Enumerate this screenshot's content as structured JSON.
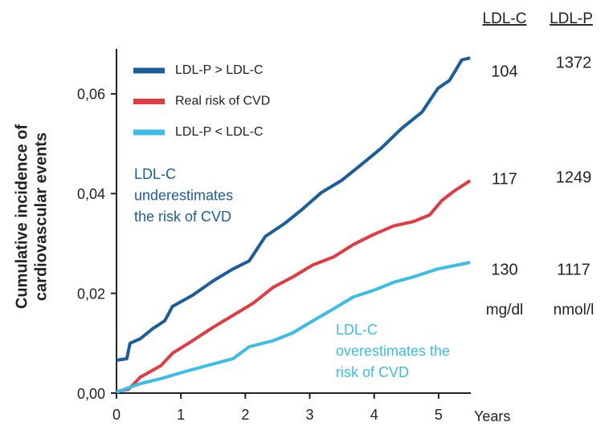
{
  "chart_data": {
    "type": "line",
    "y_label_lines": [
      "Cumulative incidence of",
      "cardiovascular events"
    ],
    "x_label": "Years",
    "xlim": [
      0,
      5.5
    ],
    "xticks": [
      0,
      1,
      2,
      3,
      4,
      5
    ],
    "ylim": [
      0,
      0.069
    ],
    "yticks": [
      {
        "value": 0,
        "label": "0,00"
      },
      {
        "value": 0.02,
        "label": "0,02"
      },
      {
        "value": 0.04,
        "label": "0,04"
      },
      {
        "value": 0.06,
        "label": "0,06"
      }
    ],
    "legend": "top-left",
    "series": [
      {
        "name": "LDL-P > LDL-C",
        "color": "#1b5e9b",
        "x": [
          0,
          0.16,
          0.21,
          0.37,
          0.56,
          0.75,
          0.87,
          1.18,
          1.5,
          1.81,
          2.06,
          2.31,
          2.62,
          2.87,
          3.18,
          3.49,
          3.8,
          4.11,
          4.43,
          4.74,
          4.99,
          5.17,
          5.36,
          5.49
        ],
        "values": [
          0.0066,
          0.0069,
          0.01,
          0.0109,
          0.0129,
          0.0145,
          0.0174,
          0.0196,
          0.0225,
          0.0249,
          0.0265,
          0.0314,
          0.0341,
          0.0367,
          0.0402,
          0.0426,
          0.0458,
          0.0491,
          0.0531,
          0.0563,
          0.0611,
          0.0627,
          0.0668,
          0.0672
        ]
      },
      {
        "name": "Real risk of CVD",
        "color": "#e03c41",
        "x": [
          0,
          0.19,
          0.37,
          0.69,
          0.87,
          1.18,
          1.5,
          1.81,
          2.12,
          2.43,
          2.74,
          3.05,
          3.37,
          3.68,
          3.99,
          4.3,
          4.61,
          4.86,
          5.05,
          5.24,
          5.49
        ],
        "values": [
          0.0003,
          0.0008,
          0.0032,
          0.0055,
          0.008,
          0.0105,
          0.0132,
          0.0156,
          0.018,
          0.0212,
          0.0233,
          0.0257,
          0.0273,
          0.0298,
          0.0318,
          0.0335,
          0.0344,
          0.0357,
          0.0386,
          0.0405,
          0.0426
        ]
      },
      {
        "name": "LDL-P < LDL-C",
        "color": "#3dbde6",
        "x": [
          0,
          0.37,
          0.69,
          1.06,
          1.43,
          1.81,
          2.06,
          2.43,
          2.74,
          3.05,
          3.37,
          3.68,
          3.99,
          4.3,
          4.61,
          4.99,
          5.49
        ],
        "values": [
          0.0002,
          0.0019,
          0.0029,
          0.0043,
          0.0056,
          0.0069,
          0.0093,
          0.0105,
          0.0121,
          0.0145,
          0.0169,
          0.0193,
          0.0206,
          0.0222,
          0.0233,
          0.0249,
          0.0262
        ]
      }
    ],
    "annotations": [
      {
        "lines": [
          "LDL-C",
          "underestimates",
          "the risk of CVD"
        ],
        "color": "#1b5e9b"
      },
      {
        "lines": [
          "LDL-C",
          "overestimates the",
          "risk of CVD"
        ],
        "color": "#3dbde6"
      }
    ],
    "side_table": {
      "headers": [
        "LDL-C",
        "LDL-P"
      ],
      "rows": [
        [
          104,
          1372
        ],
        [
          117,
          1249
        ],
        [
          130,
          1117
        ]
      ],
      "units": [
        "mg/dl",
        "nmol/l"
      ]
    }
  }
}
